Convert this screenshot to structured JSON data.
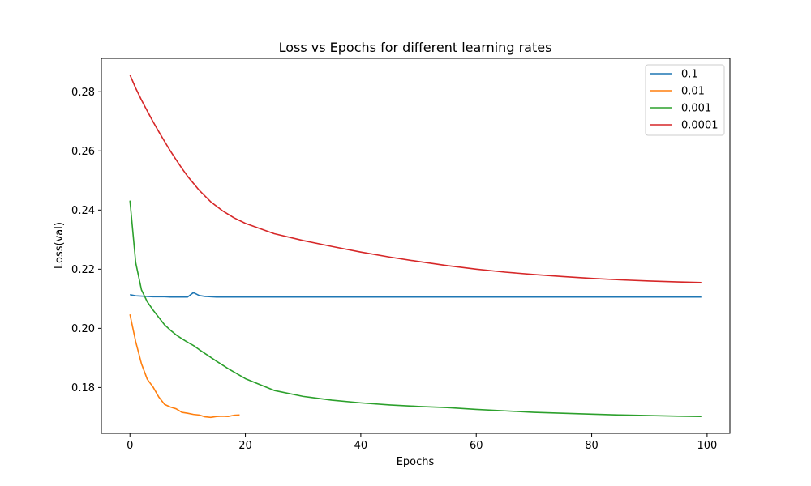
{
  "chart_data": {
    "type": "line",
    "title": "Loss vs Epochs for different learning rates",
    "xlabel": "Epochs",
    "ylabel": "Loss(val)",
    "xlim": [
      -4.95,
      103.95
    ],
    "ylim": [
      0.1645,
      0.2913
    ],
    "xticks": [
      0,
      20,
      40,
      60,
      80,
      100
    ],
    "yticks": [
      0.18,
      0.2,
      0.22,
      0.24,
      0.26,
      0.28
    ],
    "xtick_labels": [
      "0",
      "20",
      "40",
      "60",
      "80",
      "100"
    ],
    "ytick_labels": [
      "0.18",
      "0.20",
      "0.22",
      "0.24",
      "0.26",
      "0.28"
    ],
    "grid": false,
    "legend_position": "top-right",
    "series": [
      {
        "name": "0.1",
        "color": "#1f77b4",
        "points": [
          [
            0,
            0.2114
          ],
          [
            1,
            0.211
          ],
          [
            2,
            0.2109
          ],
          [
            3,
            0.2108
          ],
          [
            4,
            0.2107
          ],
          [
            5,
            0.2107
          ],
          [
            6,
            0.2107
          ],
          [
            7,
            0.2106
          ],
          [
            8,
            0.2106
          ],
          [
            9,
            0.2106
          ],
          [
            10,
            0.2106
          ],
          [
            11,
            0.2121
          ],
          [
            12,
            0.2111
          ],
          [
            13,
            0.2108
          ],
          [
            14,
            0.2107
          ],
          [
            15,
            0.2106
          ],
          [
            20,
            0.2106
          ],
          [
            30,
            0.2106
          ],
          [
            40,
            0.2106
          ],
          [
            50,
            0.2106
          ],
          [
            60,
            0.2106
          ],
          [
            70,
            0.2106
          ],
          [
            80,
            0.2106
          ],
          [
            90,
            0.2106
          ],
          [
            99,
            0.2106
          ]
        ]
      },
      {
        "name": "0.01",
        "color": "#ff7f0e",
        "points": [
          [
            0,
            0.2047
          ],
          [
            1,
            0.1955
          ],
          [
            2,
            0.188
          ],
          [
            3,
            0.1828
          ],
          [
            4,
            0.1802
          ],
          [
            5,
            0.1768
          ],
          [
            6,
            0.1743
          ],
          [
            7,
            0.1734
          ],
          [
            8,
            0.1728
          ],
          [
            9,
            0.1716
          ],
          [
            10,
            0.1713
          ],
          [
            11,
            0.1709
          ],
          [
            12,
            0.1707
          ],
          [
            13,
            0.1701
          ],
          [
            14,
            0.1699
          ],
          [
            15,
            0.1702
          ],
          [
            16,
            0.1703
          ],
          [
            17,
            0.1702
          ],
          [
            18,
            0.1706
          ],
          [
            19,
            0.1707
          ]
        ]
      },
      {
        "name": "0.001",
        "color": "#2ca02c",
        "points": [
          [
            0,
            0.2432
          ],
          [
            1,
            0.2222
          ],
          [
            2,
            0.213
          ],
          [
            3,
            0.209
          ],
          [
            4,
            0.2062
          ],
          [
            5,
            0.2037
          ],
          [
            6,
            0.2012
          ],
          [
            7,
            0.1994
          ],
          [
            8,
            0.1978
          ],
          [
            9,
            0.1965
          ],
          [
            10,
            0.1953
          ],
          [
            11,
            0.1942
          ],
          [
            12,
            0.1928
          ],
          [
            13,
            0.1915
          ],
          [
            14,
            0.1902
          ],
          [
            15,
            0.1889
          ],
          [
            17,
            0.1864
          ],
          [
            20,
            0.183
          ],
          [
            25,
            0.179
          ],
          [
            30,
            0.177
          ],
          [
            35,
            0.1757
          ],
          [
            40,
            0.1748
          ],
          [
            45,
            0.1741
          ],
          [
            50,
            0.1736
          ],
          [
            55,
            0.1732
          ],
          [
            60,
            0.1726
          ],
          [
            65,
            0.1721
          ],
          [
            70,
            0.1716
          ],
          [
            75,
            0.1713
          ],
          [
            80,
            0.171
          ],
          [
            85,
            0.1707
          ],
          [
            90,
            0.1705
          ],
          [
            95,
            0.1703
          ],
          [
            99,
            0.1702
          ]
        ]
      },
      {
        "name": "0.0001",
        "color": "#d62728",
        "points": [
          [
            0,
            0.2857
          ],
          [
            1,
            0.2812
          ],
          [
            2,
            0.2772
          ],
          [
            3,
            0.2735
          ],
          [
            4,
            0.2699
          ],
          [
            5,
            0.2665
          ],
          [
            6,
            0.2632
          ],
          [
            7,
            0.26
          ],
          [
            8,
            0.257
          ],
          [
            9,
            0.2541
          ],
          [
            10,
            0.2514
          ],
          [
            12,
            0.2467
          ],
          [
            14,
            0.2428
          ],
          [
            16,
            0.2398
          ],
          [
            18,
            0.2374
          ],
          [
            20,
            0.2355
          ],
          [
            25,
            0.232
          ],
          [
            30,
            0.2297
          ],
          [
            35,
            0.2277
          ],
          [
            40,
            0.2258
          ],
          [
            45,
            0.2241
          ],
          [
            50,
            0.2226
          ],
          [
            55,
            0.2212
          ],
          [
            60,
            0.22
          ],
          [
            65,
            0.219
          ],
          [
            70,
            0.2182
          ],
          [
            75,
            0.2175
          ],
          [
            80,
            0.2169
          ],
          [
            85,
            0.2164
          ],
          [
            90,
            0.216
          ],
          [
            95,
            0.2157
          ],
          [
            99,
            0.2155
          ]
        ]
      }
    ]
  }
}
